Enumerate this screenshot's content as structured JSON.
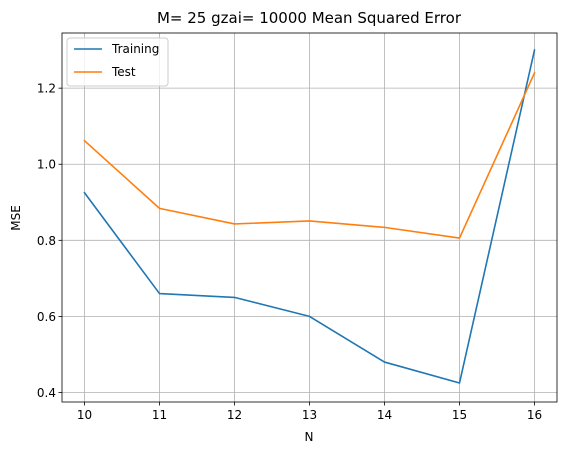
{
  "chart_data": {
    "type": "line",
    "title": "M= 25 gzai= 10000 Mean Squared Error",
    "xlabel": "N",
    "ylabel": "MSE",
    "x": [
      10,
      11,
      12,
      13,
      14,
      15,
      16
    ],
    "xlim": [
      9.7,
      16.3
    ],
    "ylim": [
      0.375,
      1.345
    ],
    "xticks": [
      "10",
      "11",
      "12",
      "13",
      "14",
      "15",
      "16"
    ],
    "yticks": [
      "0.4",
      "0.6",
      "0.8",
      "1.0",
      "1.2"
    ],
    "ytick_values": [
      0.4,
      0.6,
      0.8,
      1.0,
      1.2
    ],
    "grid": true,
    "legend_position": "top-left",
    "series": [
      {
        "name": "Training",
        "color": "#1f77b4",
        "values": [
          0.925,
          0.66,
          0.65,
          0.6,
          0.48,
          0.425,
          1.3
        ]
      },
      {
        "name": "Test",
        "color": "#ff7f0e",
        "values": [
          1.062,
          0.884,
          0.843,
          0.851,
          0.834,
          0.806,
          1.24
        ]
      }
    ]
  }
}
